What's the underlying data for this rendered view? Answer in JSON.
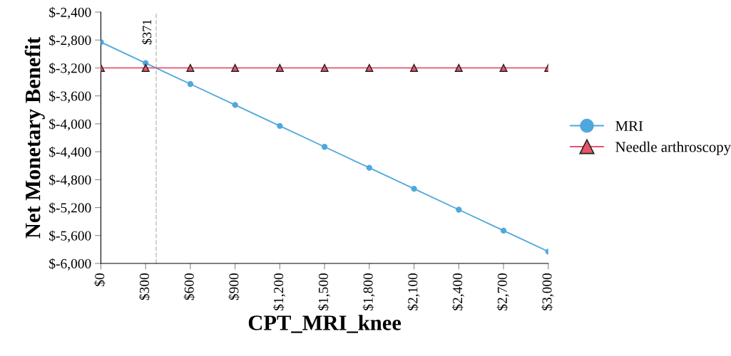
{
  "chart_data": {
    "type": "line",
    "xlabel": "CPT_MRI_knee",
    "ylabel": "Net Monetary Benefit",
    "x": [
      0,
      300,
      600,
      900,
      1200,
      1500,
      1800,
      2100,
      2400,
      2700,
      3000
    ],
    "series": [
      {
        "name": "MRI",
        "color": "#4fa8dc",
        "marker": "circle",
        "values": [
          -2830,
          -3130,
          -3430,
          -3730,
          -4030,
          -4330,
          -4630,
          -4930,
          -5230,
          -5530,
          -5830
        ]
      },
      {
        "name": "Needle arthroscopy",
        "color": "#e8546a",
        "marker": "triangle",
        "values": [
          -3200,
          -3200,
          -3200,
          -3200,
          -3200,
          -3200,
          -3200,
          -3200,
          -3200,
          -3200,
          -3200
        ]
      }
    ],
    "xlim": [
      0,
      3000
    ],
    "xticks": [
      {
        "value": 0,
        "label": "$0"
      },
      {
        "value": 300,
        "label": "$300"
      },
      {
        "value": 600,
        "label": "$600"
      },
      {
        "value": 900,
        "label": "$900"
      },
      {
        "value": 1200,
        "label": "$1,200"
      },
      {
        "value": 1500,
        "label": "$1,500"
      },
      {
        "value": 1800,
        "label": "$1,800"
      },
      {
        "value": 2100,
        "label": "$2,100"
      },
      {
        "value": 2400,
        "label": "$2,400"
      },
      {
        "value": 2700,
        "label": "$2,700"
      },
      {
        "value": 3000,
        "label": "$3,000"
      }
    ],
    "ylim": [
      -6000,
      -2400
    ],
    "yticks": [
      {
        "value": -6000,
        "label": "$-6,000"
      },
      {
        "value": -5600,
        "label": "$-5,600"
      },
      {
        "value": -5200,
        "label": "$-5,200"
      },
      {
        "value": -4800,
        "label": "$-4,800"
      },
      {
        "value": -4400,
        "label": "$-4,400"
      },
      {
        "value": -4000,
        "label": "$-4,000"
      },
      {
        "value": -3600,
        "label": "$-3,600"
      },
      {
        "value": -3200,
        "label": "$-3,200"
      },
      {
        "value": -2800,
        "label": "$-2,800"
      },
      {
        "value": -2400,
        "label": "$-2,400"
      }
    ],
    "ref_lines": [
      {
        "axis": "x",
        "value": 371,
        "label": "$371",
        "color": "#c8c8c8",
        "line_style": "dashed"
      }
    ],
    "grid": false,
    "legend": "right",
    "line_style": "solid"
  }
}
